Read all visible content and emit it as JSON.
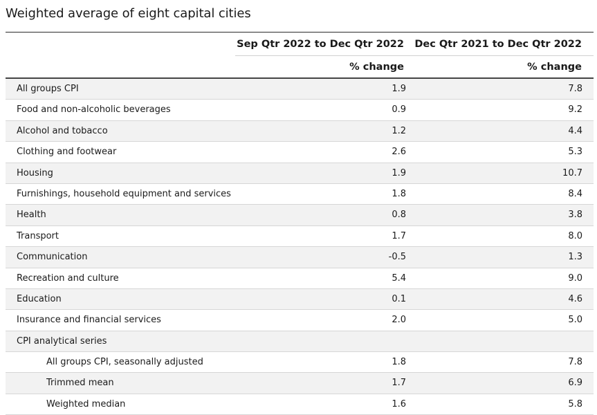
{
  "title": "Weighted average of eight capital cities",
  "headers": {
    "col1": "Sep Qtr 2022 to Dec Qtr 2022",
    "col2": "Dec Qtr 2021 to Dec Qtr 2022",
    "sub1": "% change",
    "sub2": "% change"
  },
  "rows": [
    {
      "label": "All groups CPI",
      "v1": "1.9",
      "v2": "7.8"
    },
    {
      "label": "Food and non-alcoholic beverages",
      "v1": "0.9",
      "v2": "9.2"
    },
    {
      "label": "Alcohol and tobacco",
      "v1": "1.2",
      "v2": "4.4"
    },
    {
      "label": "Clothing and footwear",
      "v1": "2.6",
      "v2": "5.3"
    },
    {
      "label": "Housing",
      "v1": "1.9",
      "v2": "10.7"
    },
    {
      "label": "Furnishings, household equipment and services",
      "v1": "1.8",
      "v2": "8.4"
    },
    {
      "label": "Health",
      "v1": "0.8",
      "v2": "3.8"
    },
    {
      "label": "Transport",
      "v1": "1.7",
      "v2": "8.0"
    },
    {
      "label": "Communication",
      "v1": "-0.5",
      "v2": "1.3"
    },
    {
      "label": "Recreation and culture",
      "v1": "5.4",
      "v2": "9.0"
    },
    {
      "label": "Education",
      "v1": "0.1",
      "v2": "4.6"
    },
    {
      "label": "Insurance and financial services",
      "v1": "2.0",
      "v2": "5.0"
    },
    {
      "label": "CPI analytical series",
      "v1": "",
      "v2": ""
    },
    {
      "label": "All groups CPI, seasonally adjusted",
      "v1": "1.8",
      "v2": "7.8"
    },
    {
      "label": "Trimmed mean",
      "v1": "1.7",
      "v2": "6.9"
    },
    {
      "label": "Weighted median",
      "v1": "1.6",
      "v2": "5.8"
    }
  ]
}
